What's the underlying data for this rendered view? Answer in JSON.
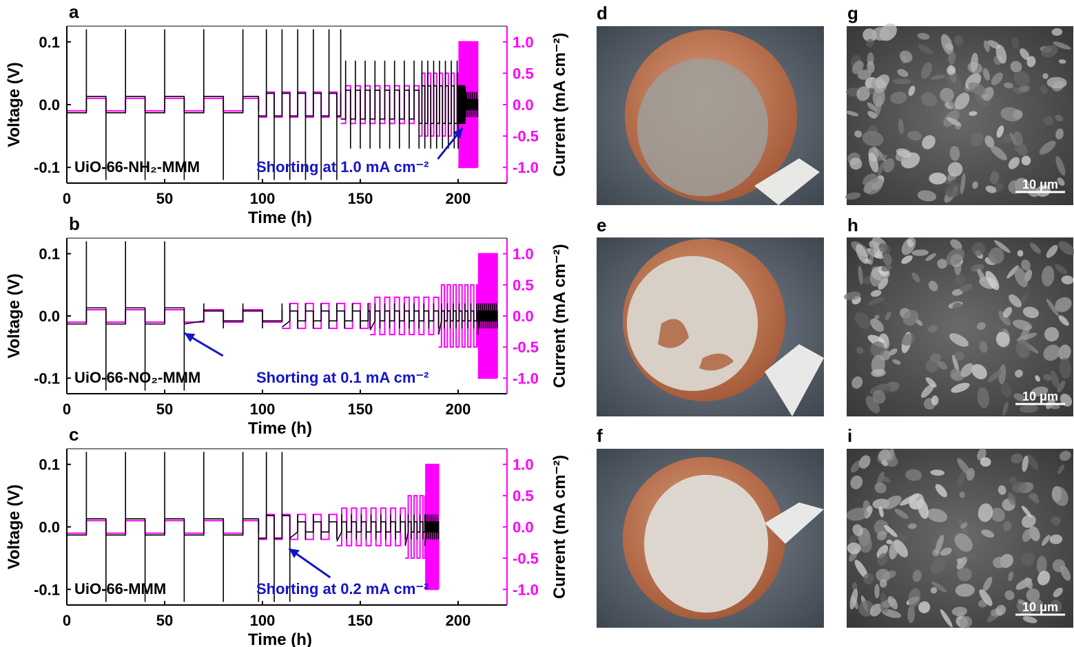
{
  "colors": {
    "voltage": "#000000",
    "current": "#ff00ff",
    "annotation": "#1414c8",
    "copper": "#c07a55",
    "lithium_deposit": "#d9d2cb",
    "sem_bg": "#4a4a4a"
  },
  "chart_data": [
    {
      "type": "line",
      "panel": "a",
      "sample": "UiO-66-NH₂-MMM",
      "annotation": "Shorting at 1.0 mA cm⁻²",
      "xlabel": "Time (h)",
      "ylabel_left": "Voltage (V)",
      "ylabel_right": "Current (mA cm⁻²)",
      "xlim": [
        0,
        225
      ],
      "ylim_left": [
        -0.125,
        0.125
      ],
      "ylim_right": [
        -1.25,
        1.25
      ],
      "xticks": [
        "0",
        "50",
        "100",
        "150",
        "200"
      ],
      "yticks_left": [
        "-0.1",
        "0.0",
        "0.1"
      ],
      "yticks_right": [
        "-1.0",
        "-0.5",
        "0.0",
        "0.5",
        "1.0"
      ],
      "series": [
        {
          "axis": "right",
          "segments": [
            {
              "t0": 0,
              "t1": 98,
              "current": 0.1,
              "cycle_h": 20
            },
            {
              "t0": 98,
              "t1": 140,
              "current": 0.2,
              "cycle_h": 8
            },
            {
              "t0": 140,
              "t1": 180,
              "current": 0.3,
              "cycle_h": 5
            },
            {
              "t0": 180,
              "t1": 200,
              "current": 0.5,
              "cycle_h": 3
            },
            {
              "t0": 200,
              "t1": 210,
              "current": 1.0,
              "cycle_h": 1
            }
          ]
        }
      ],
      "short_time": 203
    },
    {
      "type": "line",
      "panel": "b",
      "sample": "UiO-66-NO₂-MMM",
      "annotation": "Shorting at 0.1 mA cm⁻²",
      "xlabel": "Time (h)",
      "ylabel_left": "Voltage (V)",
      "ylabel_right": "Current (mA cm⁻²)",
      "xlim": [
        0,
        225
      ],
      "ylim_left": [
        -0.125,
        0.125
      ],
      "ylim_right": [
        -1.25,
        1.25
      ],
      "xticks": [
        "0",
        "50",
        "100",
        "150",
        "200"
      ],
      "yticks_left": [
        "-0.1",
        "0.0",
        "0.1"
      ],
      "yticks_right": [
        "-1.0",
        "-0.5",
        "0.0",
        "0.5",
        "1.0"
      ],
      "series": [
        {
          "axis": "right",
          "segments": [
            {
              "t0": 0,
              "t1": 110,
              "current": 0.1,
              "cycle_h": 20
            },
            {
              "t0": 110,
              "t1": 155,
              "current": 0.2,
              "cycle_h": 8
            },
            {
              "t0": 155,
              "t1": 190,
              "current": 0.3,
              "cycle_h": 5
            },
            {
              "t0": 190,
              "t1": 210,
              "current": 0.5,
              "cycle_h": 3
            },
            {
              "t0": 210,
              "t1": 220,
              "current": 1.0,
              "cycle_h": 1
            }
          ]
        }
      ],
      "short_time": 58
    },
    {
      "type": "line",
      "panel": "c",
      "sample": "UiO-66-MMM",
      "annotation": "Shorting at 0.2 mA cm⁻²",
      "xlabel": "Time (h)",
      "ylabel_left": "Voltage (V)",
      "ylabel_right": "Current (mA cm⁻²)",
      "xlim": [
        0,
        225
      ],
      "ylim_left": [
        -0.125,
        0.125
      ],
      "ylim_right": [
        -1.25,
        1.25
      ],
      "xticks": [
        "0",
        "50",
        "100",
        "150",
        "200"
      ],
      "yticks_left": [
        "-0.1",
        "0.0",
        "0.1"
      ],
      "yticks_right": [
        "-1.0",
        "-0.5",
        "0.0",
        "0.5",
        "1.0"
      ],
      "series": [
        {
          "axis": "right",
          "segments": [
            {
              "t0": 0,
              "t1": 98,
              "current": 0.1,
              "cycle_h": 20
            },
            {
              "t0": 98,
              "t1": 138,
              "current": 0.2,
              "cycle_h": 8
            },
            {
              "t0": 138,
              "t1": 173,
              "current": 0.3,
              "cycle_h": 5
            },
            {
              "t0": 173,
              "t1": 183,
              "current": 0.5,
              "cycle_h": 3
            },
            {
              "t0": 183,
              "t1": 190,
              "current": 1.0,
              "cycle_h": 1
            }
          ]
        }
      ],
      "short_time": 110
    }
  ],
  "photos": [
    {
      "letter": "d"
    },
    {
      "letter": "e"
    },
    {
      "letter": "f"
    }
  ],
  "sem": [
    {
      "letter": "g",
      "scale": "10 μm"
    },
    {
      "letter": "h",
      "scale": "10 μm"
    },
    {
      "letter": "i",
      "scale": "10 μm"
    }
  ]
}
